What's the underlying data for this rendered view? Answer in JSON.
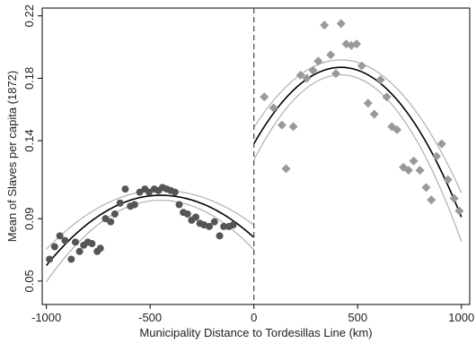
{
  "chart_data": {
    "type": "scatter",
    "xlabel": "Municipality Distance to Tordesillas Line (km)",
    "ylabel": "Mean of Slaves per capita (1872)",
    "xlim": [
      -1020,
      1040
    ],
    "ylim": [
      0.035,
      0.225
    ],
    "xticks": [
      -1000,
      -500,
      0,
      500,
      1000
    ],
    "xtick_labels": [
      "-1000",
      "-500",
      "0",
      "500",
      "1000"
    ],
    "yticks": [
      0.05,
      0.09,
      0.14,
      0.18,
      0.22
    ],
    "ytick_labels": [
      "0.05",
      "0.09",
      "0.14",
      "0.18",
      "0.22"
    ],
    "cutoff_x": 0,
    "grid": false,
    "legend": "none",
    "colors": {
      "left_points": "#555555",
      "right_points": "#999999",
      "fit_line": "#000000",
      "ci_band": "#b0b0b0",
      "cutoff": "#555555",
      "axes": "#000000"
    },
    "series": [
      {
        "marker": "circle",
        "x": [
          -985,
          -960,
          -935,
          -910,
          -880,
          -860,
          -840,
          -820,
          -800,
          -780,
          -755,
          -740,
          -715,
          -690,
          -670,
          -645,
          -620,
          -595,
          -575,
          -550,
          -525,
          -505,
          -480,
          -460,
          -440,
          -420,
          -400,
          -380,
          -360,
          -340,
          -320,
          -300,
          -280,
          -260,
          -240,
          -215,
          -190,
          -165,
          -145,
          -120,
          -100
        ],
        "y": [
          0.064,
          0.072,
          0.079,
          0.076,
          0.064,
          0.075,
          0.069,
          0.073,
          0.075,
          0.074,
          0.069,
          0.071,
          0.09,
          0.088,
          0.093,
          0.1,
          0.109,
          0.098,
          0.099,
          0.107,
          0.109,
          0.107,
          0.109,
          0.108,
          0.11,
          0.109,
          0.108,
          0.107,
          0.099,
          0.094,
          0.093,
          0.089,
          0.091,
          0.087,
          0.086,
          0.085,
          0.088,
          0.079,
          0.085,
          0.085,
          0.086
        ]
      },
      {
        "marker": "diamond",
        "x": [
          50,
          95,
          135,
          155,
          190,
          225,
          255,
          285,
          310,
          340,
          370,
          395,
          420,
          445,
          470,
          495,
          520,
          550,
          580,
          610,
          640,
          665,
          690,
          720,
          745,
          770,
          800,
          830,
          855,
          880,
          905,
          935,
          965,
          990
        ],
        "y": [
          0.168,
          0.161,
          0.15,
          0.122,
          0.149,
          0.182,
          0.18,
          0.185,
          0.191,
          0.214,
          0.195,
          0.183,
          0.215,
          0.202,
          0.201,
          0.202,
          0.188,
          0.164,
          0.157,
          0.179,
          0.168,
          0.149,
          0.147,
          0.123,
          0.121,
          0.127,
          0.121,
          0.11,
          0.102,
          0.13,
          0.138,
          0.115,
          0.103,
          0.095
        ]
      }
    ],
    "fits": [
      {
        "x_range": [
          -1000,
          0
        ],
        "peak_x": -450,
        "peak_y": 0.105,
        "end_y": [
          0.06,
          0.078
        ],
        "band": 0.004
      },
      {
        "x_range": [
          0,
          1000
        ],
        "peak_x": 420,
        "peak_y": 0.187,
        "end_y": [
          0.138,
          0.091
        ],
        "band": 0.006
      }
    ]
  }
}
